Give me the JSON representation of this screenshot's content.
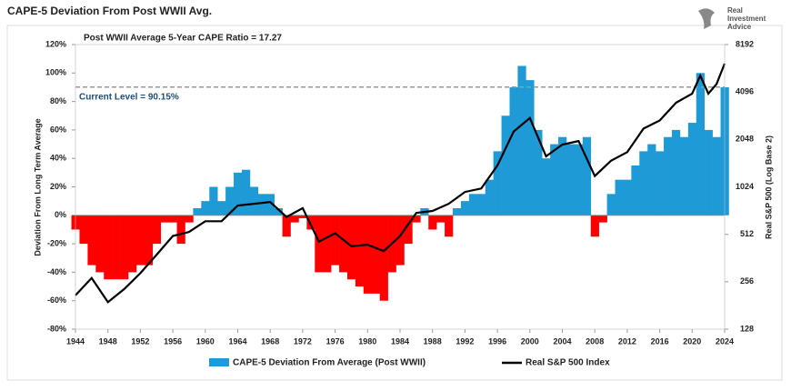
{
  "chart_data": {
    "type": "area_line",
    "title": "CAPE-5 Deviation From Post WWII Avg.",
    "logo": [
      "Real",
      "Investment",
      "Advice"
    ],
    "subtitle": "Post WWII Average 5-Year CAPE Ratio = 17.27",
    "current_level": 90.15,
    "current_label": "Current Level = 90.15%",
    "y_label": "Deviation From Long Term Average",
    "y2_label": "Real S&P 500 (Log Base 2)",
    "xlim": [
      1944,
      2024
    ],
    "xticks": [
      1944,
      1948,
      1952,
      1956,
      1960,
      1964,
      1968,
      1972,
      1976,
      1980,
      1984,
      1988,
      1992,
      1996,
      2000,
      2004,
      2008,
      2012,
      2016,
      2020,
      2024
    ],
    "ylim": [
      -80,
      120
    ],
    "yticks": [
      {
        "value": -80,
        "label": "-80%"
      },
      {
        "value": -60,
        "label": "-60%"
      },
      {
        "value": -40,
        "label": "-40%"
      },
      {
        "value": -20,
        "label": "-20%"
      },
      {
        "value": 0,
        "label": "0%"
      },
      {
        "value": 20,
        "label": "20%"
      },
      {
        "value": 40,
        "label": "40%"
      },
      {
        "value": 60,
        "label": "60%"
      },
      {
        "value": 80,
        "label": "80%"
      },
      {
        "value": 100,
        "label": "100%"
      },
      {
        "value": 120,
        "label": "120%"
      }
    ],
    "y2lim": [
      128,
      8192
    ],
    "y2ticks": [
      128,
      256,
      512,
      1024,
      2048,
      4096,
      8192
    ],
    "y2_log_base": 2,
    "series": [
      {
        "name": "CAPE-5 Deviation From Average (Post WWII)",
        "color": "#1e9ad6",
        "negative_color": "#ff0000",
        "x": [
          1944,
          1945,
          1946,
          1947,
          1948,
          1949,
          1950,
          1951,
          1952,
          1953,
          1954,
          1955,
          1956,
          1957,
          1958,
          1959,
          1960,
          1961,
          1962,
          1963,
          1964,
          1965,
          1966,
          1967,
          1968,
          1969,
          1970,
          1971,
          1972,
          1973,
          1974,
          1975,
          1976,
          1977,
          1978,
          1979,
          1980,
          1981,
          1982,
          1983,
          1984,
          1985,
          1986,
          1987,
          1988,
          1989,
          1990,
          1991,
          1992,
          1993,
          1994,
          1995,
          1996,
          1997,
          1998,
          1999,
          2000,
          2001,
          2002,
          2003,
          2004,
          2005,
          2006,
          2007,
          2008,
          2009,
          2010,
          2011,
          2012,
          2013,
          2014,
          2015,
          2016,
          2017,
          2018,
          2019,
          2020,
          2021,
          2022,
          2023,
          2024
        ],
        "values": [
          -10,
          -20,
          -35,
          -40,
          -45,
          -45,
          -45,
          -40,
          -35,
          -35,
          -20,
          -5,
          -5,
          -20,
          -5,
          5,
          10,
          20,
          10,
          20,
          30,
          32,
          20,
          15,
          15,
          5,
          -15,
          -5,
          -2,
          -10,
          -40,
          -40,
          -35,
          -40,
          -45,
          -50,
          -55,
          -55,
          -60,
          -40,
          -35,
          -20,
          -5,
          5,
          -10,
          -5,
          -15,
          5,
          10,
          15,
          15,
          25,
          45,
          70,
          90,
          105,
          95,
          60,
          40,
          50,
          55,
          50,
          50,
          55,
          -15,
          -5,
          15,
          25,
          25,
          35,
          45,
          50,
          45,
          55,
          60,
          55,
          65,
          100,
          60,
          55,
          90
        ]
      },
      {
        "name": "Real S&P 500 Index",
        "color": "#000000",
        "axis": "y2",
        "x": [
          1944,
          1946,
          1948,
          1950,
          1952,
          1954,
          1956,
          1958,
          1960,
          1962,
          1964,
          1966,
          1968,
          1970,
          1972,
          1974,
          1976,
          1978,
          1980,
          1982,
          1984,
          1986,
          1988,
          1990,
          1992,
          1994,
          1996,
          1998,
          2000,
          2002,
          2004,
          2006,
          2008,
          2010,
          2012,
          2014,
          2016,
          2018,
          2020,
          2021,
          2022,
          2023,
          2024
        ],
        "values": [
          210,
          270,
          190,
          230,
          290,
          380,
          500,
          530,
          620,
          620,
          780,
          800,
          820,
          660,
          750,
          460,
          520,
          430,
          440,
          400,
          500,
          700,
          720,
          800,
          950,
          1000,
          1400,
          2300,
          2800,
          1600,
          1900,
          2000,
          1200,
          1500,
          1700,
          2400,
          2700,
          3500,
          4000,
          5200,
          4000,
          4600,
          6200
        ]
      }
    ]
  }
}
